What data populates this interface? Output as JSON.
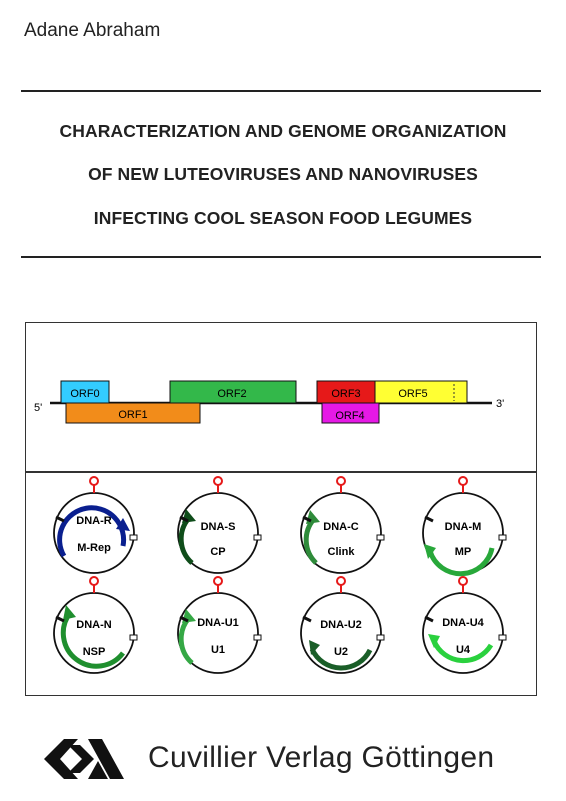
{
  "author": "Adane Abraham",
  "title_lines": [
    "CHARACTERIZATION AND GENOME ORGANIZATION",
    "OF NEW LUTEOVIRUSES AND NANOVIRUSES",
    "INFECTING COOL SEASON FOOD LEGUMES"
  ],
  "genome_map": {
    "end_5": "5'",
    "end_3": "3'",
    "orfs": [
      {
        "label": "ORF0",
        "color": "#33ccff"
      },
      {
        "label": "ORF1",
        "color": "#f28c1a"
      },
      {
        "label": "ORF2",
        "color": "#33b84a"
      },
      {
        "label": "ORF3",
        "color": "#e61919"
      },
      {
        "label": "ORF4",
        "color": "#e619e6"
      },
      {
        "label": "ORF5",
        "color": "#ffff33"
      }
    ]
  },
  "circles": [
    {
      "name": "DNA-R",
      "product": "M-Rep",
      "arrow_color": "#0a1f8f"
    },
    {
      "name": "DNA-S",
      "product": "CP",
      "arrow_color": "#0f4d1a"
    },
    {
      "name": "DNA-C",
      "product": "Clink",
      "arrow_color": "#2e8b3a"
    },
    {
      "name": "DNA-M",
      "product": "MP",
      "arrow_color": "#28a83a"
    },
    {
      "name": "DNA-N",
      "product": "NSP",
      "arrow_color": "#1f8f2e"
    },
    {
      "name": "DNA-U1",
      "product": "U1",
      "arrow_color": "#35a845"
    },
    {
      "name": "DNA-U2",
      "product": "U2",
      "arrow_color": "#1a5e28"
    },
    {
      "name": "DNA-U4",
      "product": "U4",
      "arrow_color": "#2ad13e"
    }
  ],
  "publisher": "Cuvillier Verlag Göttingen"
}
